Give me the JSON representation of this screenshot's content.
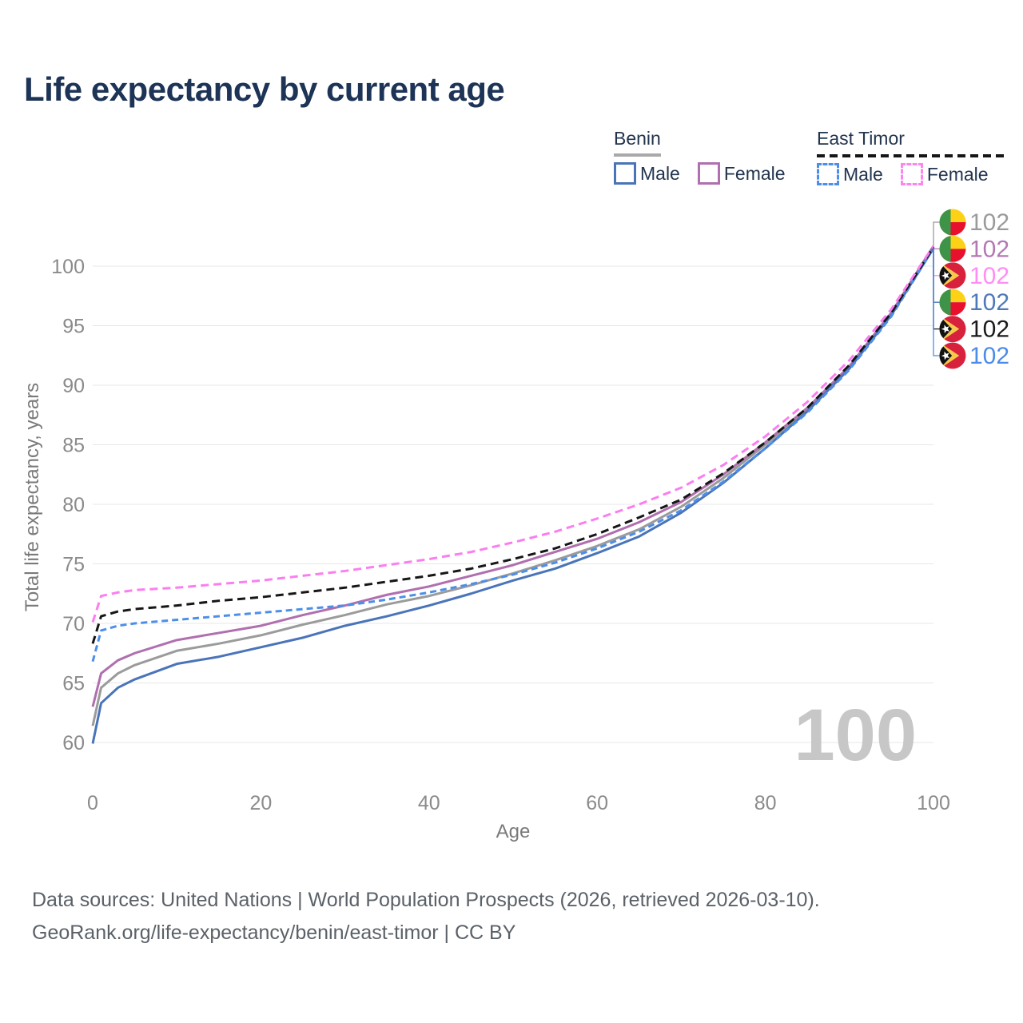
{
  "page": {
    "title": "Life expectancy by current age"
  },
  "legend": {
    "groups": [
      {
        "label": "Benin",
        "line_style": "solid",
        "underline_color": "#a9a9a9",
        "items": [
          {
            "label": "Male",
            "color": "#4a74b9",
            "dash": false
          },
          {
            "label": "Female",
            "color": "#b06fae",
            "dash": false
          }
        ]
      },
      {
        "label": "East Timor",
        "line_style": "dashed",
        "underline_color": "#161616",
        "items": [
          {
            "label": "Male",
            "color": "#4d8fe8",
            "dash": true
          },
          {
            "label": "Female",
            "color": "#fc85f0",
            "dash": true
          }
        ]
      }
    ]
  },
  "chart_data": {
    "type": "line",
    "title": "Life expectancy by current age",
    "xlabel": "Age",
    "ylabel": "Total life expectancy, years",
    "x_ticks": [
      0,
      20,
      40,
      60,
      80,
      100
    ],
    "y_ticks": [
      60,
      65,
      70,
      75,
      80,
      85,
      90,
      95,
      100
    ],
    "xlim": [
      0,
      100
    ],
    "ylim": [
      59,
      102.5
    ],
    "grid": "horizontal",
    "age_indicator": "100",
    "ages": [
      0,
      1,
      3,
      5,
      10,
      15,
      20,
      25,
      30,
      35,
      40,
      45,
      50,
      55,
      60,
      65,
      70,
      75,
      80,
      85,
      90,
      95,
      100
    ],
    "series": [
      {
        "id": "benin-total",
        "name": "Benin",
        "sex": "total",
        "color": "#9b9b9b",
        "dash": null,
        "values": [
          61.4,
          64.6,
          65.8,
          66.5,
          67.7,
          68.3,
          69.0,
          69.9,
          70.7,
          71.6,
          72.3,
          73.2,
          74.2,
          75.3,
          76.5,
          77.9,
          79.8,
          82.2,
          85.0,
          88.0,
          91.5,
          96.0,
          101.6
        ]
      },
      {
        "id": "benin-female",
        "name": "Benin Female",
        "sex": "female",
        "color": "#b06fae",
        "dash": null,
        "values": [
          63.0,
          65.8,
          66.9,
          67.5,
          68.6,
          69.2,
          69.8,
          70.7,
          71.5,
          72.4,
          73.1,
          74.0,
          74.9,
          76.0,
          77.1,
          78.5,
          80.2,
          82.5,
          85.2,
          88.1,
          91.6,
          96.1,
          101.7
        ]
      },
      {
        "id": "benin-male",
        "name": "Benin Male",
        "sex": "male",
        "color": "#4a74b9",
        "dash": null,
        "values": [
          59.9,
          63.3,
          64.6,
          65.3,
          66.6,
          67.2,
          68.0,
          68.8,
          69.8,
          70.6,
          71.5,
          72.5,
          73.6,
          74.6,
          75.9,
          77.3,
          79.3,
          81.8,
          84.7,
          87.8,
          91.4,
          95.9,
          101.5
        ]
      },
      {
        "id": "east-timor-male",
        "name": "East Timor Male",
        "sex": "male",
        "color": "#4d8fe8",
        "dash": "8 5",
        "values": [
          66.8,
          69.4,
          69.8,
          70.0,
          70.3,
          70.6,
          70.9,
          71.2,
          71.5,
          72.0,
          72.6,
          73.3,
          74.1,
          75.1,
          76.3,
          77.7,
          79.5,
          81.9,
          84.7,
          87.7,
          91.3,
          95.8,
          101.5
        ]
      },
      {
        "id": "east-timor-total",
        "name": "East Timor",
        "sex": "total",
        "color": "#161616",
        "dash": "10 6",
        "values": [
          68.3,
          70.6,
          71.0,
          71.2,
          71.5,
          71.9,
          72.2,
          72.6,
          73.0,
          73.5,
          74.0,
          74.6,
          75.4,
          76.3,
          77.5,
          78.9,
          80.4,
          82.6,
          85.2,
          88.1,
          91.7,
          96.1,
          101.6
        ]
      },
      {
        "id": "east-timor-female",
        "name": "East Timor Female",
        "sex": "female",
        "color": "#fb7ef0",
        "dash": "10 6",
        "values": [
          70.1,
          72.3,
          72.6,
          72.8,
          73.0,
          73.3,
          73.6,
          74.0,
          74.4,
          74.9,
          75.4,
          76.0,
          76.8,
          77.7,
          78.8,
          80.0,
          81.4,
          83.3,
          85.7,
          88.6,
          92.1,
          96.4,
          101.7
        ]
      }
    ],
    "end_labels": [
      {
        "series_id": "benin-total",
        "flag": "benin",
        "value": "102",
        "color": "#9a9a9a"
      },
      {
        "series_id": "benin-female",
        "flag": "benin",
        "value": "102",
        "color": "#b278b2"
      },
      {
        "series_id": "east-timor-female",
        "flag": "east-timor",
        "value": "102",
        "color": "#ff8df5"
      },
      {
        "series_id": "benin-male",
        "flag": "benin",
        "value": "102",
        "color": "#4d79b8"
      },
      {
        "series_id": "east-timor-total",
        "flag": "east-timor",
        "value": "102",
        "color": "#1a1a1a"
      },
      {
        "series_id": "east-timor-male",
        "flag": "east-timor",
        "value": "102",
        "color": "#4b8bea"
      }
    ],
    "flag_colors": {
      "benin": {
        "green": "#3d9348",
        "yellow": "#fcd116",
        "red": "#e8112d"
      },
      "east_timor": {
        "red": "#d8213c",
        "black": "#121212",
        "yellow": "#f6c94c",
        "white": "#ffffff"
      }
    }
  },
  "footer": {
    "line1": "Data sources: United Nations | World Population Prospects (2026, retrieved 2026-03-10).",
    "line2": "GeoRank.org/life-expectancy/benin/east-timor | CC BY"
  }
}
